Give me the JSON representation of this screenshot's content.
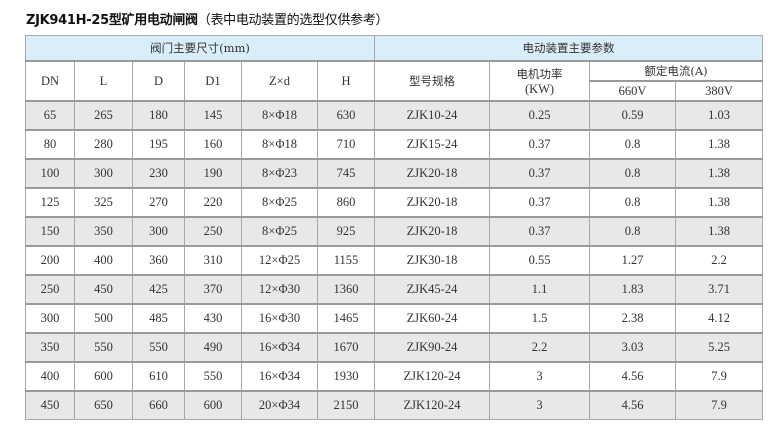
{
  "title": "ZJK941H-25型矿用电动闸阀",
  "subtitle": "（表中电动装置的选型仅供参考）",
  "colors": {
    "header_bg": "#d9eef9",
    "alt_row_bg": "#e8e8ea",
    "border": "#a8a8a8"
  },
  "headers": {
    "valve_group": "阀门主要尺寸(mm)",
    "actuator_group": "电动装置主要参数",
    "columns": [
      "DN",
      "L",
      "D",
      "D1",
      "Z×d",
      "H",
      "型号规格"
    ],
    "power": "电机功率",
    "power_unit": "(KW)",
    "current": "额定电流(A)",
    "v660": "660V",
    "v380": "380V"
  },
  "rows": [
    [
      "65",
      "265",
      "180",
      "145",
      "8×Φ18",
      "630",
      "ZJK10-24",
      "0.25",
      "0.59",
      "1.03"
    ],
    [
      "80",
      "280",
      "195",
      "160",
      "8×Φ18",
      "710",
      "ZJK15-24",
      "0.37",
      "0.8",
      "1.38"
    ],
    [
      "100",
      "300",
      "230",
      "190",
      "8×Φ23",
      "745",
      "ZJK20-18",
      "0.37",
      "0.8",
      "1.38"
    ],
    [
      "125",
      "325",
      "270",
      "220",
      "8×Φ25",
      "860",
      "ZJK20-18",
      "0.37",
      "0.8",
      "1.38"
    ],
    [
      "150",
      "350",
      "300",
      "250",
      "8×Φ25",
      "925",
      "ZJK20-18",
      "0.37",
      "0.8",
      "1.38"
    ],
    [
      "200",
      "400",
      "360",
      "310",
      "12×Φ25",
      "1155",
      "ZJK30-18",
      "0.55",
      "1.27",
      "2.2"
    ],
    [
      "250",
      "450",
      "425",
      "370",
      "12×Φ30",
      "1360",
      "ZJK45-24",
      "1.1",
      "1.83",
      "3.71"
    ],
    [
      "300",
      "500",
      "485",
      "430",
      "16×Φ30",
      "1465",
      "ZJK60-24",
      "1.5",
      "2.38",
      "4.12"
    ],
    [
      "350",
      "550",
      "550",
      "490",
      "16×Φ34",
      "1670",
      "ZJK90-24",
      "2.2",
      "3.03",
      "5.25"
    ],
    [
      "400",
      "600",
      "610",
      "550",
      "16×Φ34",
      "1930",
      "ZJK120-24",
      "3",
      "4.56",
      "7.9"
    ],
    [
      "450",
      "650",
      "660",
      "600",
      "20×Φ34",
      "2150",
      "ZJK120-24",
      "3",
      "4.56",
      "7.9"
    ]
  ]
}
